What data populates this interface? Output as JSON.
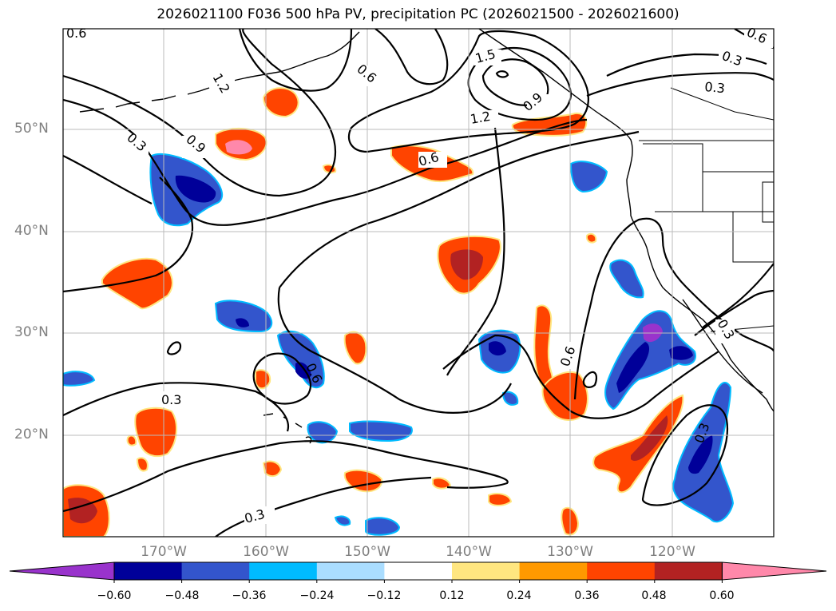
{
  "title": "2026021100 F036 500 hPa PV, precipitation PC (2026021500 - 2026021600)",
  "lat_labels": [
    "50°N",
    "40°N",
    "30°N",
    "20°N"
  ],
  "lon_labels": [
    "170°W",
    "160°W",
    "150°W",
    "140°W",
    "130°W",
    "120°W"
  ],
  "colorbar": {
    "ticks": [
      "−0.60",
      "−0.48",
      "−0.36",
      "−0.24",
      "−0.12",
      "0.12",
      "0.24",
      "0.36",
      "0.48",
      "0.60"
    ],
    "colors": [
      "#9933cc",
      "#000099",
      "#3355cc",
      "#00bbff",
      "#aaddff",
      "#ffffff",
      "#ffe680",
      "#ff9900",
      "#ff4400",
      "#b22222",
      "#ff88aa"
    ]
  },
  "contour_labels": [
    "0.6",
    "1.2",
    "0.3",
    "0.9",
    "0.6",
    "1.5",
    "1.2",
    "0.9",
    "0.3",
    "0.6",
    "0.3",
    "0.6",
    "0.6",
    "0.6",
    "0.3",
    "0.3",
    "0.3",
    "0.3"
  ],
  "palette": {
    "pink": "#ff88aa",
    "darkred": "#b22222",
    "orange": "#ff4400",
    "lightorange": "#ff9900",
    "yellow": "#ffe680",
    "lightblue": "#aaddff",
    "cyan": "#00bbff",
    "blue": "#3355cc",
    "navy": "#000099",
    "purple": "#9933cc"
  }
}
